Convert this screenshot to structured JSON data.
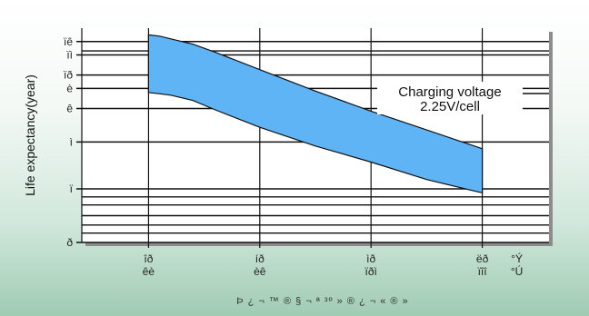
{
  "chart_data": {
    "type": "area",
    "title": "",
    "ylabel": "Life expectancy(year)",
    "xlabel": "Þ ¿ ¬ ™ ® § ¬ ª ³º » ® ¿ ¬ « ® »",
    "y_ticks": [
      {
        "label": "ïê",
        "value": 15
      },
      {
        "label": "ïì",
        "value": 14
      },
      {
        "label": "ïð",
        "value": 12.5
      },
      {
        "label": "è",
        "value": 11.5
      },
      {
        "label": "ê",
        "value": 10
      },
      {
        "label": "ì",
        "value": 7.5
      },
      {
        "label": "ï",
        "value": 4
      },
      {
        "label": "ð",
        "value": 0
      }
    ],
    "extra_gridlines": [
      14.3,
      3.4,
      2.8,
      2.0,
      1.3,
      0.7
    ],
    "x_ticks": [
      {
        "top": "îð",
        "bottom": "êè",
        "value": 20
      },
      {
        "top": "íð",
        "bottom": "èê",
        "value": 30
      },
      {
        "top": "ìð",
        "bottom": "ïðì",
        "value": 40
      },
      {
        "top": "ëð",
        "bottom": "ïîî",
        "value": 50
      }
    ],
    "x_unit_top": "°Ý",
    "x_unit_bottom": "°Ú",
    "xlim": [
      14,
      56
    ],
    "ylim": [
      0,
      16
    ],
    "annotation": [
      "Charging voltage",
      "2.25V/cell"
    ],
    "band": {
      "x": [
        20,
        21,
        22,
        24,
        26,
        30,
        35,
        40,
        45,
        50
      ],
      "upper": [
        15.5,
        15.4,
        15.2,
        14.8,
        14.2,
        12.9,
        11.3,
        9.8,
        8.4,
        7.0
      ],
      "lower": [
        11.2,
        11.1,
        11.0,
        10.6,
        9.9,
        8.6,
        7.2,
        6.0,
        4.7,
        3.7
      ]
    }
  },
  "colors": {
    "band": "#5fb4f5",
    "grid": "#111111",
    "shadow": "#8c8c8c"
  }
}
